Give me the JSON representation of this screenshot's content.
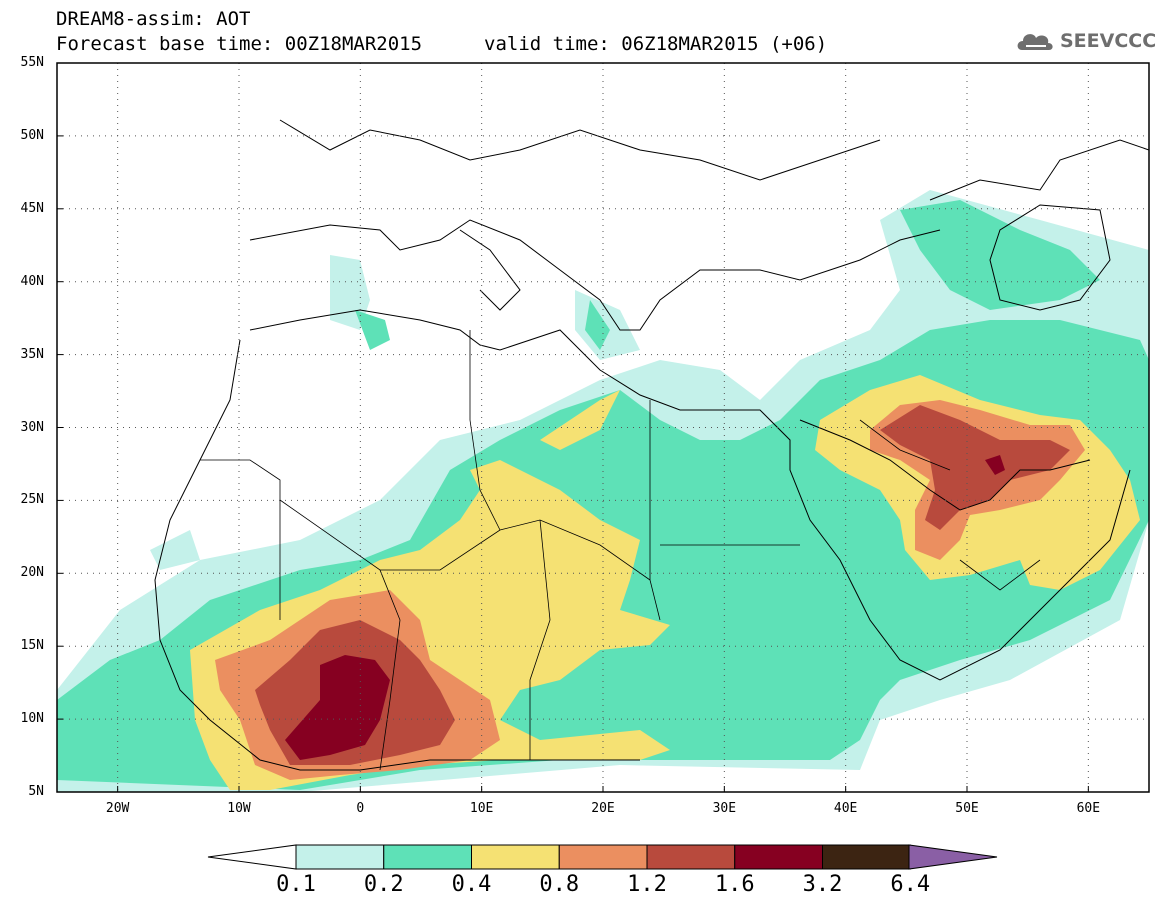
{
  "header": {
    "title": "DREAM8-assim: AOT",
    "base_time": "Forecast base time: 00Z18MAR2015",
    "valid_time": "valid time: 06Z18MAR2015 (+06)"
  },
  "logo": {
    "text": "SEEVCCC",
    "icon": "cloud-icon"
  },
  "map": {
    "projection": "latitude-longitude",
    "lon_range": [
      -25,
      65
    ],
    "lat_range": [
      5,
      55
    ],
    "lat_labels": [
      "55N",
      "50N",
      "45N",
      "40N",
      "35N",
      "30N",
      "25N",
      "20N",
      "15N",
      "10N",
      "5N"
    ],
    "lon_labels": [
      "20W",
      "10W",
      "0",
      "10E",
      "20E",
      "30E",
      "40E",
      "50E",
      "60E"
    ],
    "gridlines": "dotted"
  },
  "colorbar": {
    "labels": [
      "0.1",
      "0.2",
      "0.4",
      "0.8",
      "1.2",
      "1.6",
      "3.2",
      "6.4"
    ],
    "colors": [
      "#c4f1ea",
      "#5ee1b7",
      "#f5e173",
      "#eb8f60",
      "#b84a3d",
      "#860021",
      "#3c2412",
      "#8a5fa5"
    ]
  }
}
